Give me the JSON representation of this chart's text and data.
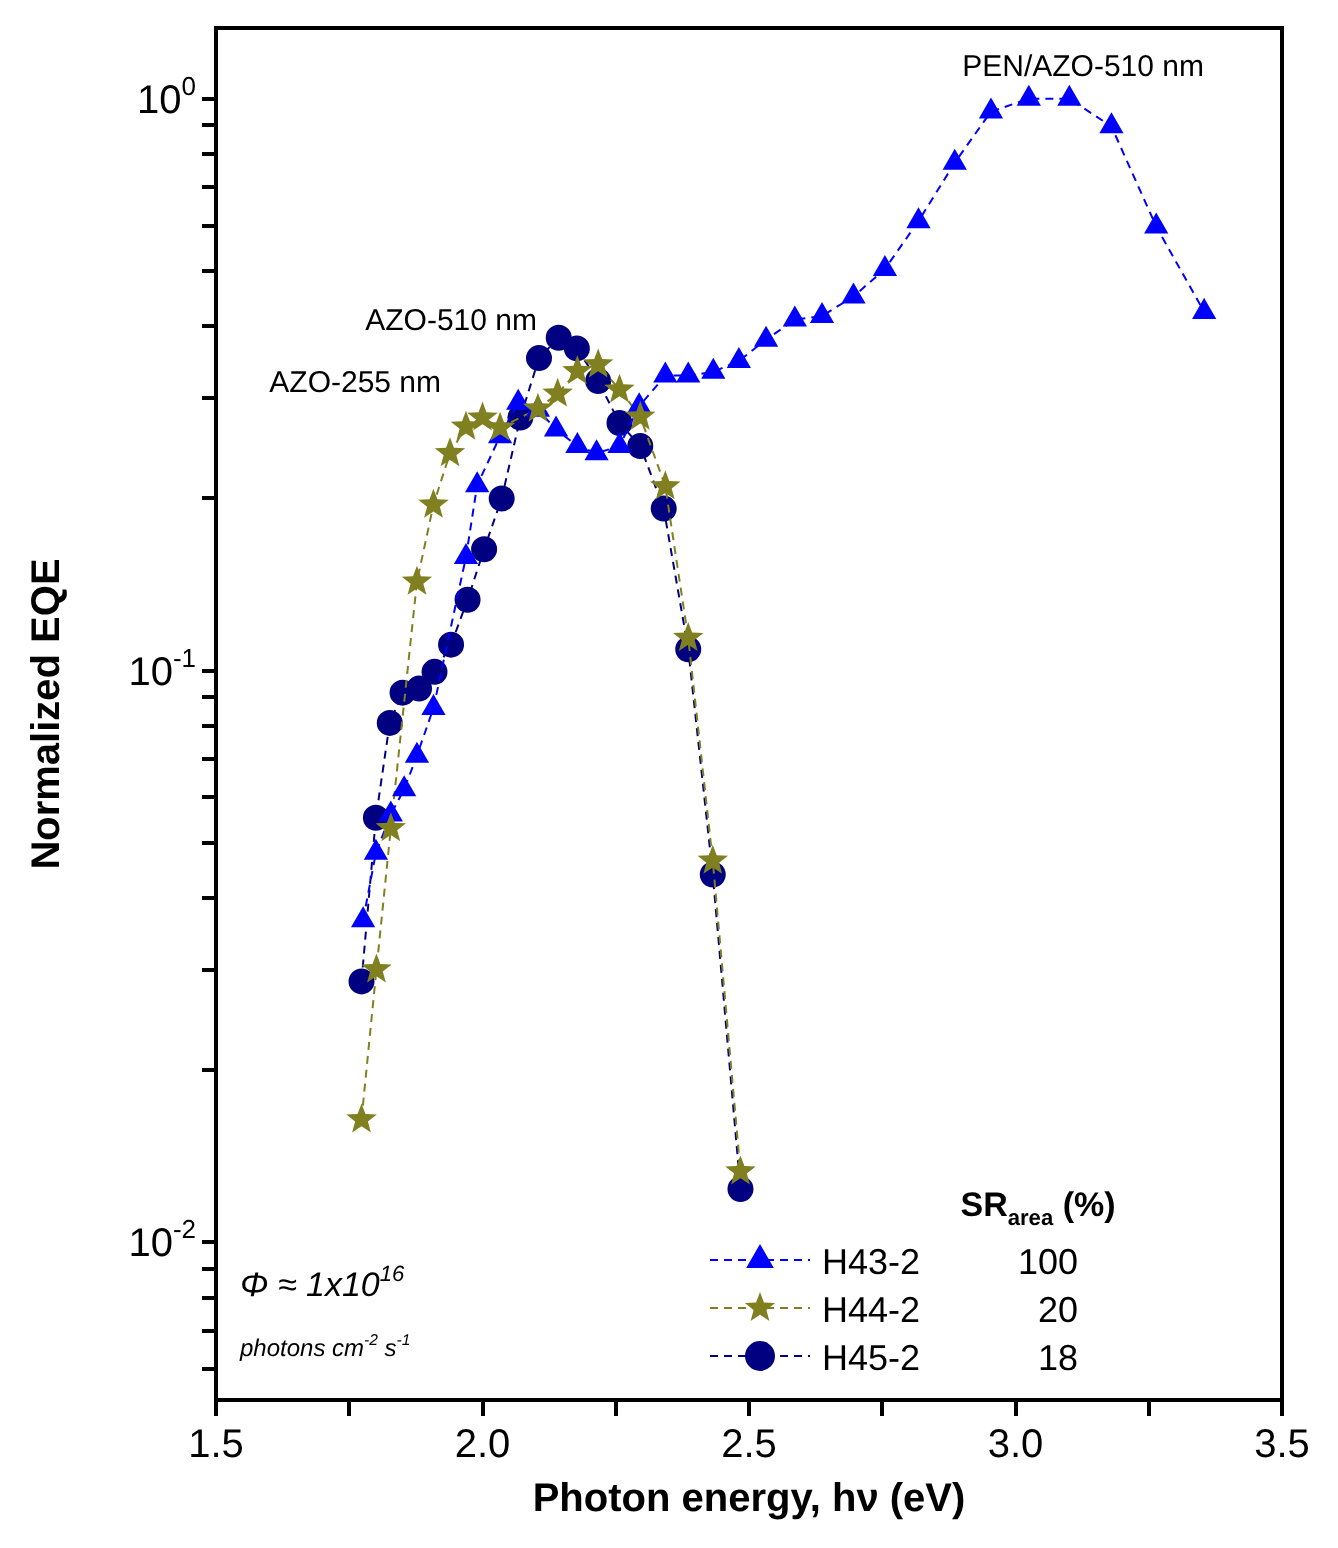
{
  "chart_data": {
    "type": "line",
    "xlabel": "Photon energy, hν (eV)",
    "ylabel": "Normalized EQE",
    "log": "y",
    "grid": false,
    "legend": "bottom right",
    "legend_title": "SR$_{area}$ (%)",
    "line_style": "dashed",
    "xlim": [
      1.5,
      3.5
    ],
    "ylim": [
      0.0053,
      1.33
    ],
    "xticks": [
      1.5,
      {
        "value": 1.75,
        "label": null
      },
      {
        "value": 2,
        "label": "2.0"
      },
      {
        "value": 2.25,
        "label": null
      },
      2.5,
      {
        "value": 2.75,
        "label": null
      },
      {
        "value": 3,
        "label": "3.0"
      },
      {
        "value": 3.25,
        "label": null
      },
      3.5
    ],
    "yticks": [
      {
        "value": 0.006,
        "label": null
      },
      {
        "value": 0.007,
        "label": null
      },
      {
        "value": 0.008,
        "label": null
      },
      {
        "value": 0.009,
        "label": null
      },
      {
        "value": 0.01,
        "label": "10$^{-2}$"
      },
      {
        "value": 0.02,
        "label": null
      },
      {
        "value": 0.03,
        "label": null
      },
      {
        "value": 0.04,
        "label": null
      },
      {
        "value": 0.05,
        "label": null
      },
      {
        "value": 0.06,
        "label": null
      },
      {
        "value": 0.07,
        "label": null
      },
      {
        "value": 0.08,
        "label": null
      },
      {
        "value": 0.09,
        "label": null
      },
      {
        "value": 0.1,
        "label": "10$^{-1}$"
      },
      {
        "value": 0.2,
        "label": null
      },
      {
        "value": 0.3,
        "label": null
      },
      {
        "value": 0.4,
        "label": null
      },
      {
        "value": 0.5,
        "label": null
      },
      {
        "value": 0.6,
        "label": null
      },
      {
        "value": 0.7,
        "label": null
      },
      {
        "value": 0.8,
        "label": null
      },
      {
        "value": 0.9,
        "label": null
      },
      {
        "value": 1,
        "label": "10$^{0}$"
      }
    ],
    "series": [
      {
        "name": "H43-2",
        "color": "#0000ff",
        "marker": "triangle",
        "x": [
          1.776,
          1.8,
          1.828,
          1.853,
          1.877,
          1.908,
          1.969,
          1.99,
          2.033,
          2.067,
          2.104,
          2.138,
          2.178,
          2.214,
          2.257,
          2.294,
          2.343,
          2.386,
          2.433,
          2.481,
          2.532,
          2.586,
          2.637,
          2.696,
          2.755,
          2.818,
          2.886,
          2.954,
          3.025,
          3.101,
          3.18,
          3.264,
          3.354
        ],
        "values": [
          0.0366,
          0.048,
          0.056,
          0.062,
          0.071,
          0.086,
          0.158,
          0.211,
          0.257,
          0.294,
          0.286,
          0.264,
          0.247,
          0.24,
          0.247,
          0.29,
          0.328,
          0.328,
          0.333,
          0.348,
          0.379,
          0.411,
          0.417,
          0.451,
          0.504,
          0.611,
          0.773,
          0.95,
          1.0,
          1.0,
          0.895,
          0.598,
          0.424
        ]
      },
      {
        "name": "H44-2",
        "color": "#808020",
        "marker": "star",
        "x": [
          1.773,
          1.801,
          1.828,
          1.877,
          1.908,
          1.939,
          1.969,
          2.0,
          2.033,
          2.104,
          2.141,
          2.178,
          2.217,
          2.257,
          2.296,
          2.343,
          2.386,
          2.432,
          2.484
        ],
        "values": [
          0.0164,
          0.03,
          0.053,
          0.143,
          0.195,
          0.24,
          0.267,
          0.277,
          0.266,
          0.287,
          0.305,
          0.334,
          0.343,
          0.31,
          0.278,
          0.21,
          0.114,
          0.0465,
          0.0133
        ]
      },
      {
        "name": "H45-2",
        "color": "#000080",
        "marker": "circle",
        "x": [
          1.773,
          1.8,
          1.826,
          1.85,
          1.881,
          1.91,
          1.941,
          1.972,
          2.003,
          2.036,
          2.071,
          2.106,
          2.143,
          2.177,
          2.217,
          2.257,
          2.296,
          2.34,
          2.386,
          2.432,
          2.484
        ],
        "values": [
          0.0286,
          0.0553,
          0.081,
          0.0915,
          0.093,
          0.0995,
          0.111,
          0.133,
          0.163,
          0.2,
          0.277,
          0.352,
          0.382,
          0.366,
          0.321,
          0.271,
          0.247,
          0.192,
          0.109,
          0.044,
          0.0124
        ]
      }
    ],
    "annotations": [
      "PEN/AZO-510 nm",
      "AZO-510 nm",
      "AZO-255 nm",
      "Φ ≈ 1x10$^{16}$",
      "photons cm$^{-2}$ s$^{-1}$",
      "100",
      "20",
      "18"
    ]
  }
}
